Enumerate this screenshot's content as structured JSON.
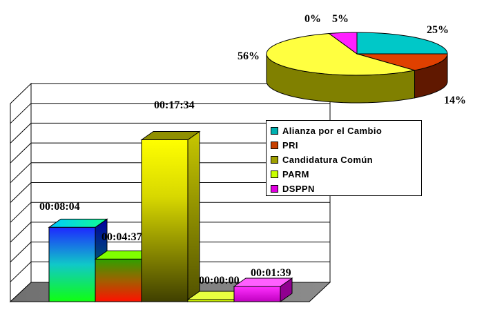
{
  "chart_data": [
    {
      "type": "bar",
      "categories": [
        "Alianza por el Cambio",
        "PRI",
        "Candidatura Común",
        "PARM",
        "DSPPN"
      ],
      "values": [
        484,
        277,
        1054,
        0,
        99
      ],
      "data_labels": [
        "00:08:04",
        "00:04:37",
        "00:17:34",
        "00:00:00",
        "00:01:39"
      ],
      "ylim": [
        0,
        1290
      ],
      "grid": true,
      "legend_position": "right"
    },
    {
      "type": "pie",
      "categories": [
        "Alianza por el Cambio",
        "PRI",
        "Candidatura Común",
        "PARM",
        "DSPPN"
      ],
      "values": [
        25,
        14,
        56,
        0,
        5
      ],
      "data_labels": [
        "25%",
        "14%",
        "56%",
        "0%",
        "5%"
      ]
    }
  ],
  "legend": {
    "items": [
      {
        "label": "Alianza por el Cambio",
        "color": "#00b0b0"
      },
      {
        "label": "PRI",
        "color": "#c84000"
      },
      {
        "label": "Candidatura Común",
        "color": "#a0a000"
      },
      {
        "label": "PARM",
        "color": "#c8ff00"
      },
      {
        "label": "DSPPN",
        "color": "#e000e0"
      }
    ]
  }
}
